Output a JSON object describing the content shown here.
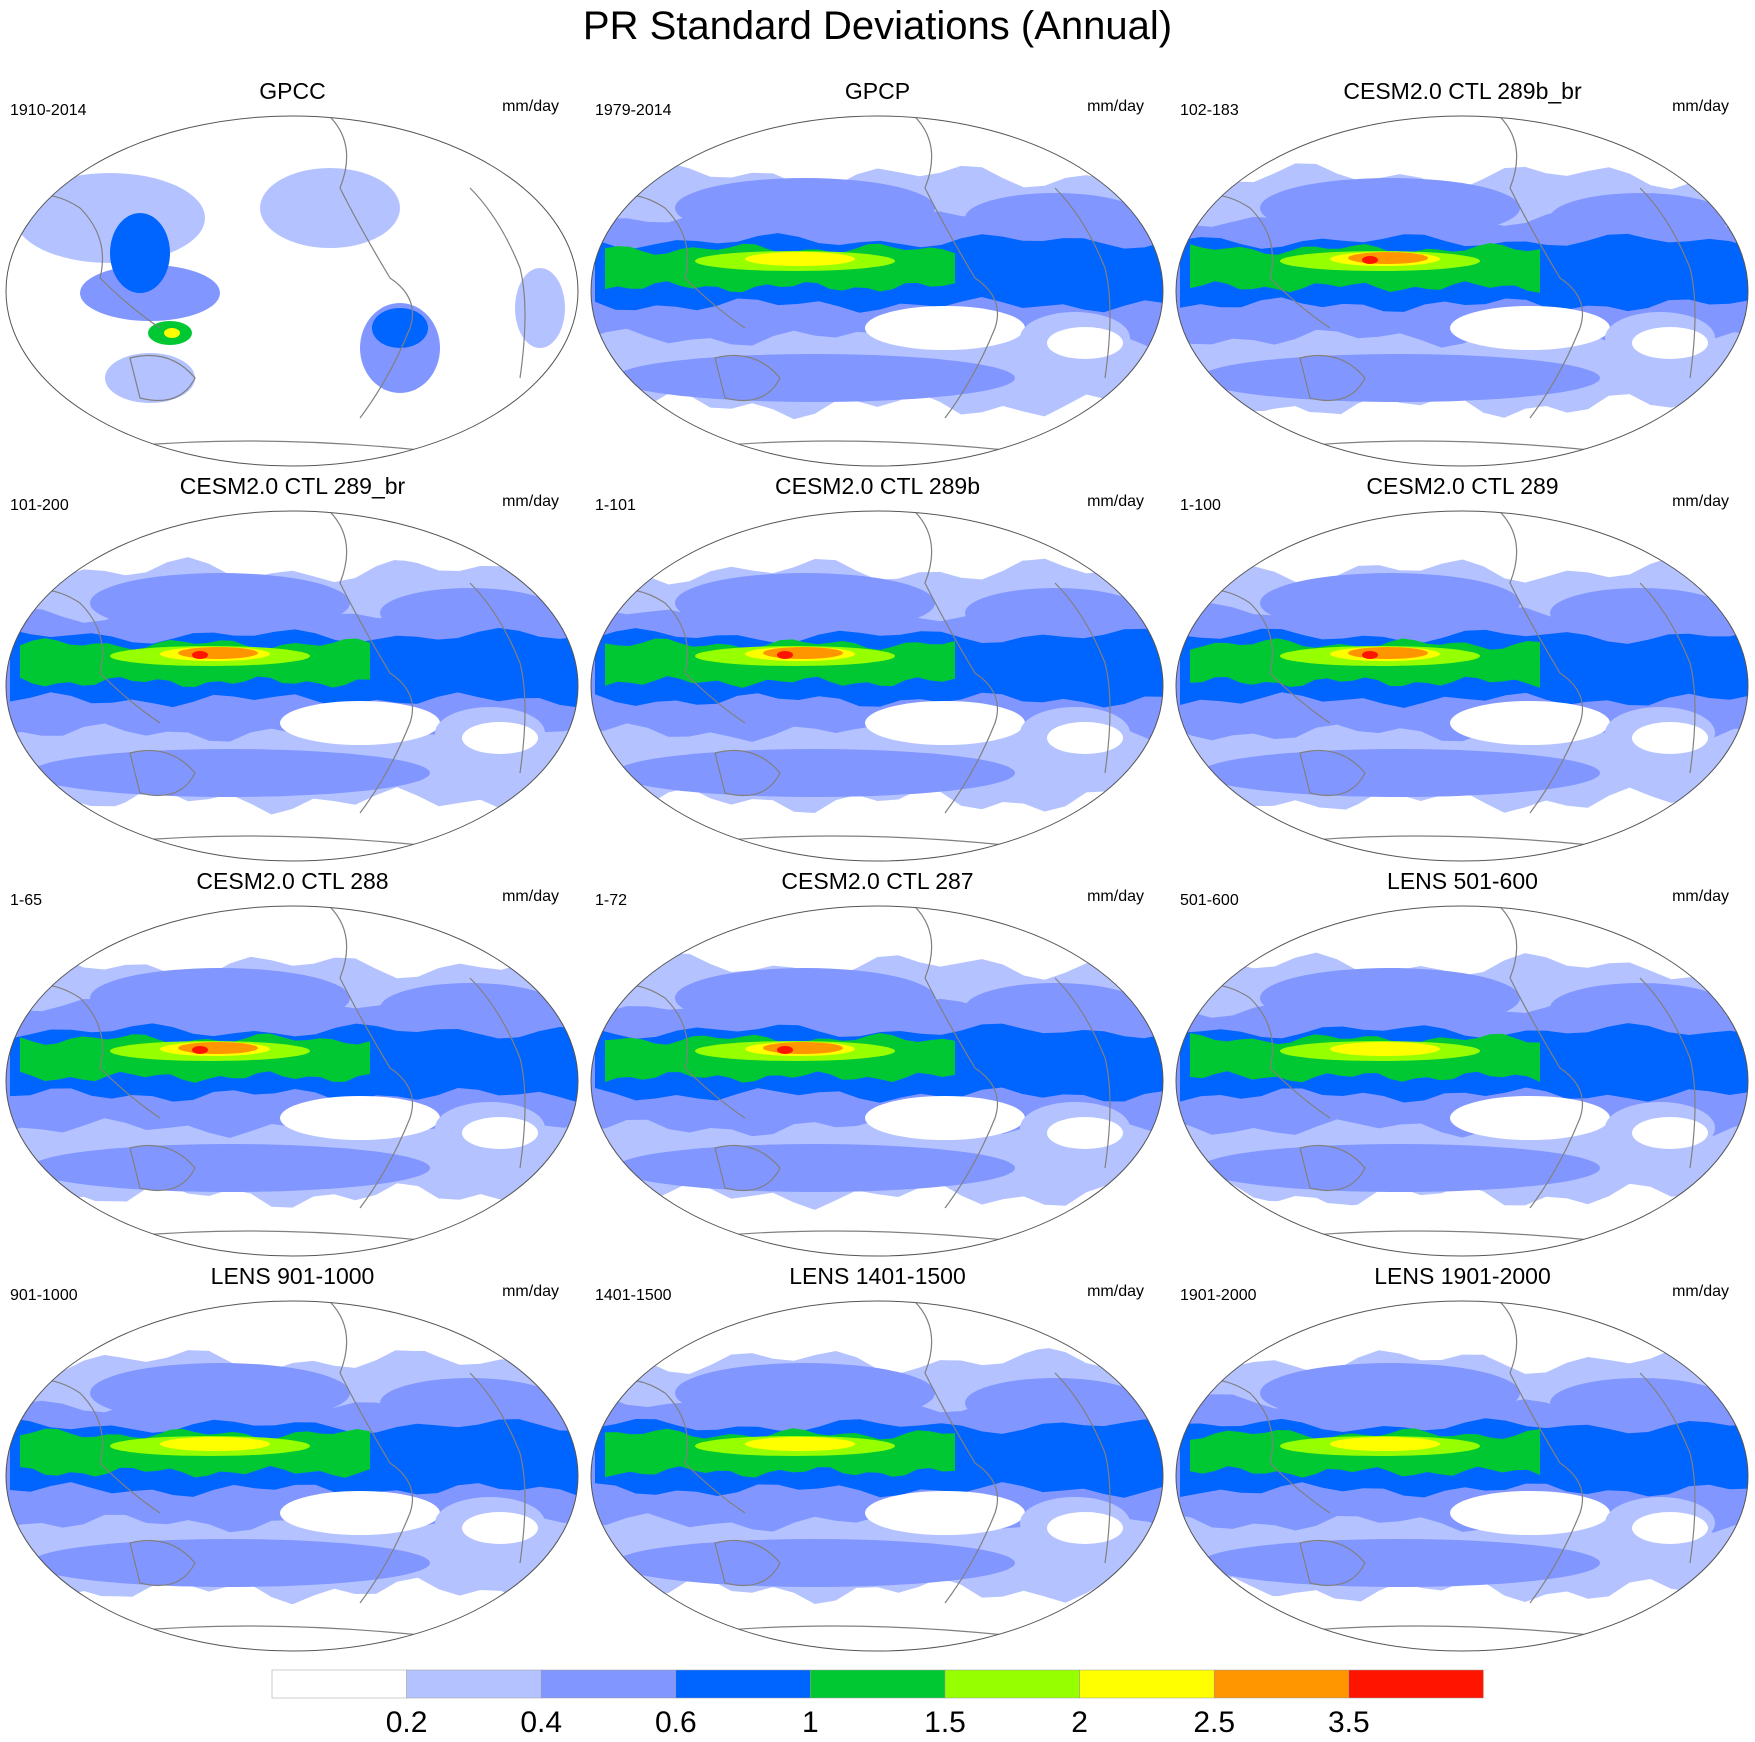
{
  "title": "PR Standard Deviations (Annual)",
  "units": "mm/day",
  "panels": [
    {
      "title": "GPCC",
      "range": "1910-2014",
      "coverage": "land",
      "peak": 2
    },
    {
      "title": "GPCP",
      "range": "1979-2014",
      "coverage": "global",
      "peak": 2
    },
    {
      "title": "CESM2.0 CTL 289b_br",
      "range": "102-183",
      "coverage": "global",
      "peak": 3
    },
    {
      "title": "CESM2.0 CTL 289_br",
      "range": "101-200",
      "coverage": "global",
      "peak": 3
    },
    {
      "title": "CESM2.0 CTL 289b",
      "range": "1-101",
      "coverage": "global",
      "peak": 3
    },
    {
      "title": "CESM2.0 CTL 289",
      "range": "1-100",
      "coverage": "global",
      "peak": 3
    },
    {
      "title": "CESM2.0 CTL 288",
      "range": "1-65",
      "coverage": "global",
      "peak": 3
    },
    {
      "title": "CESM2.0 CTL 287",
      "range": "1-72",
      "coverage": "global",
      "peak": 3
    },
    {
      "title": "LENS 501-600",
      "range": "501-600",
      "coverage": "global",
      "peak": 2
    },
    {
      "title": "LENS 901-1000",
      "range": "901-1000",
      "coverage": "global",
      "peak": 2
    },
    {
      "title": "LENS 1401-1500",
      "range": "1401-1500",
      "coverage": "global",
      "peak": 2
    },
    {
      "title": "LENS 1901-2000",
      "range": "1901-2000",
      "coverage": "global",
      "peak": 2
    }
  ],
  "colorbar": {
    "levels": [
      "0.2",
      "0.4",
      "0.6",
      "1",
      "1.5",
      "2",
      "2.5",
      "3.5"
    ],
    "colors": [
      "#ffffff",
      "#b4c3ff",
      "#8296ff",
      "#0064ff",
      "#00c832",
      "#96ff00",
      "#ffff00",
      "#ff9600",
      "#ff1400"
    ]
  },
  "coastline_color": "#808080"
}
